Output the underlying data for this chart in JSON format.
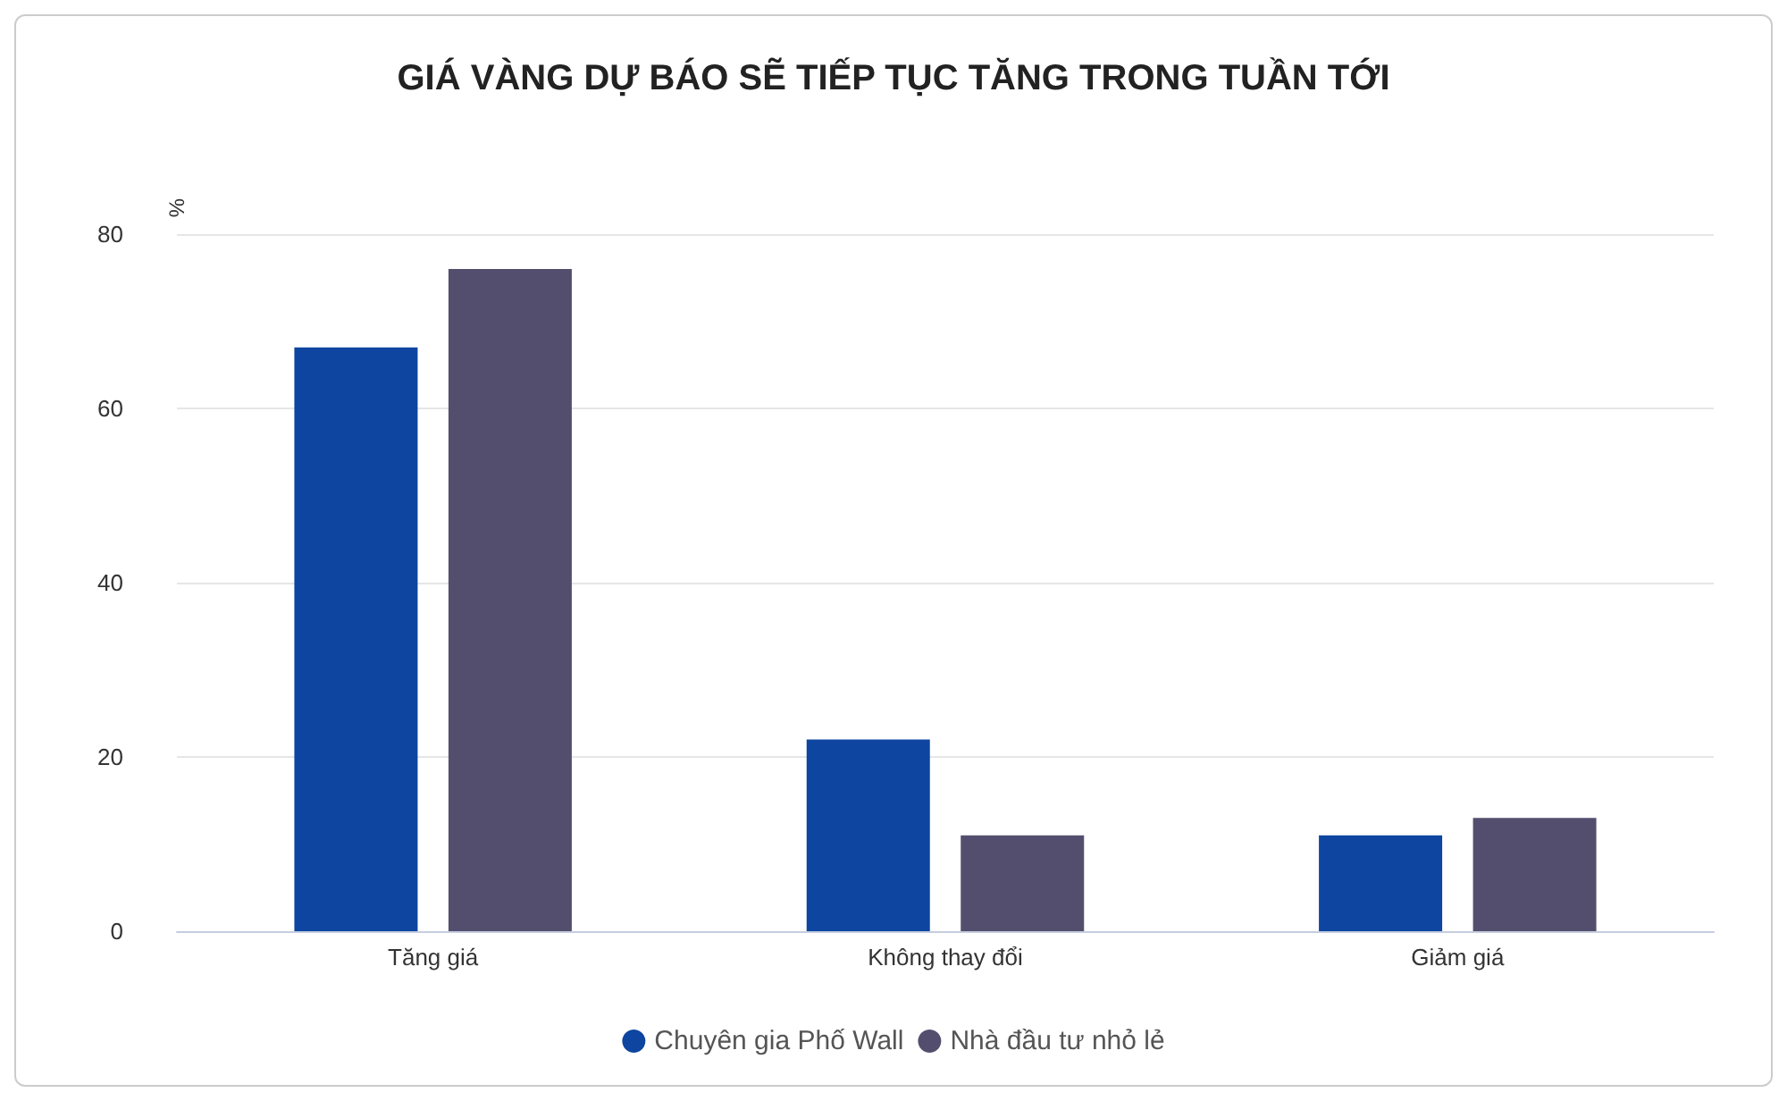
{
  "chart_data": {
    "type": "bar",
    "title": "GIÁ VÀNG DỰ BÁO SẼ TIẾP TỤC TĂNG TRONG TUẦN TỚI",
    "ylabel": "%",
    "categories": [
      "Tăng giá",
      "Không thay đổi",
      "Giảm giá"
    ],
    "series": [
      {
        "name": "Chuyên gia Phố Wall",
        "color": "#0d45a0",
        "values": [
          67,
          22,
          11
        ]
      },
      {
        "name": "Nhà đầu tư nhỏ lẻ",
        "color": "#544e6e",
        "values": [
          76,
          11,
          13
        ]
      }
    ],
    "ylim": [
      0,
      80
    ],
    "yticks": [
      0,
      20,
      40,
      60,
      80
    ],
    "grid": "y",
    "legend": "bottom"
  }
}
